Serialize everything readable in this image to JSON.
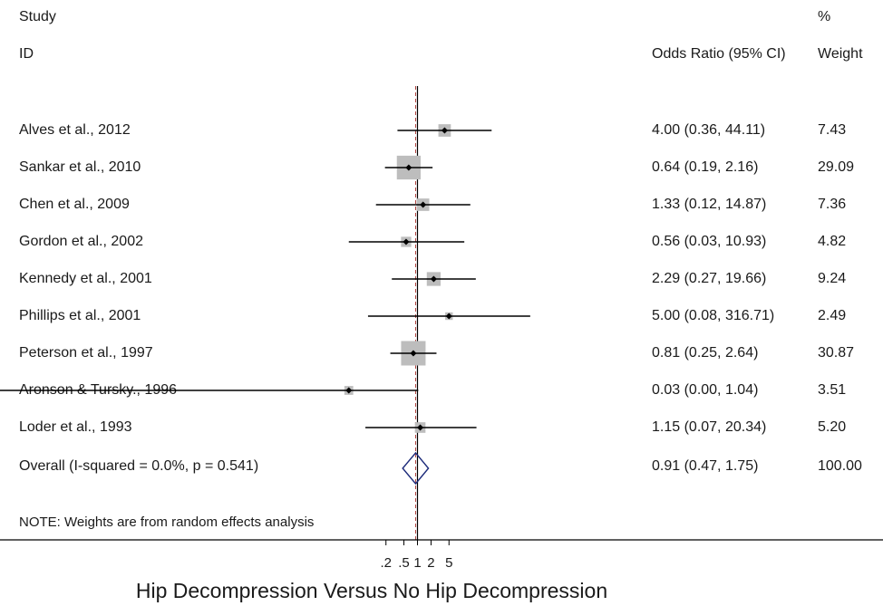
{
  "headers": {
    "study_top": "Study",
    "study_bottom": "ID",
    "or": "Odds Ratio (95% CI)",
    "weight_top": "%",
    "weight_bottom": "Weight"
  },
  "note": "NOTE: Weights are from random effects analysis",
  "chart_data": {
    "type": "forest",
    "xlabel": "Hip Decompression Versus No Hip Decompression",
    "x_scale": "log",
    "x_ticks": [
      {
        "value": 0.2,
        "label": ".2"
      },
      {
        "value": 0.5,
        "label": ".5"
      },
      {
        "value": 1,
        "label": "1"
      },
      {
        "value": 2,
        "label": "2"
      },
      {
        "value": 5,
        "label": "5"
      }
    ],
    "null_line": 1,
    "studies": [
      {
        "study": "Alves et al., 2012",
        "or": 4.0,
        "lo": 0.36,
        "hi": 44.11,
        "ci_text": "4.00 (0.36, 44.11)",
        "weight": "7.43"
      },
      {
        "study": "Sankar et al., 2010",
        "or": 0.64,
        "lo": 0.19,
        "hi": 2.16,
        "ci_text": "0.64 (0.19, 2.16)",
        "weight": "29.09"
      },
      {
        "study": "Chen et al., 2009",
        "or": 1.33,
        "lo": 0.12,
        "hi": 14.87,
        "ci_text": "1.33 (0.12, 14.87)",
        "weight": "7.36"
      },
      {
        "study": "Gordon et al., 2002",
        "or": 0.56,
        "lo": 0.03,
        "hi": 10.93,
        "ci_text": "0.56 (0.03, 10.93)",
        "weight": "4.82"
      },
      {
        "study": "Kennedy et al., 2001",
        "or": 2.29,
        "lo": 0.27,
        "hi": 19.66,
        "ci_text": "2.29 (0.27, 19.66)",
        "weight": "9.24"
      },
      {
        "study": "Phillips et al., 2001",
        "or": 5.0,
        "lo": 0.08,
        "hi": 316.71,
        "ci_text": "5.00 (0.08, 316.71)",
        "weight": "2.49"
      },
      {
        "study": "Peterson et al., 1997",
        "or": 0.81,
        "lo": 0.25,
        "hi": 2.64,
        "ci_text": "0.81 (0.25, 2.64)",
        "weight": "30.87"
      },
      {
        "study": "Aronson & Tursky., 1996",
        "or": 0.03,
        "lo": 0.0,
        "hi": 1.04,
        "ci_text": "0.03 (0.00, 1.04)",
        "weight": "3.51"
      },
      {
        "study": "Loder et al., 1993",
        "or": 1.15,
        "lo": 0.07,
        "hi": 20.34,
        "ci_text": "1.15 (0.07, 20.34)",
        "weight": "5.20"
      }
    ],
    "overall": {
      "label": "Overall  (I-squared = 0.0%, p = 0.541)",
      "or": 0.91,
      "lo": 0.47,
      "hi": 1.75,
      "ci_text": "0.91 (0.47, 1.75)",
      "weight": "100.00"
    }
  }
}
